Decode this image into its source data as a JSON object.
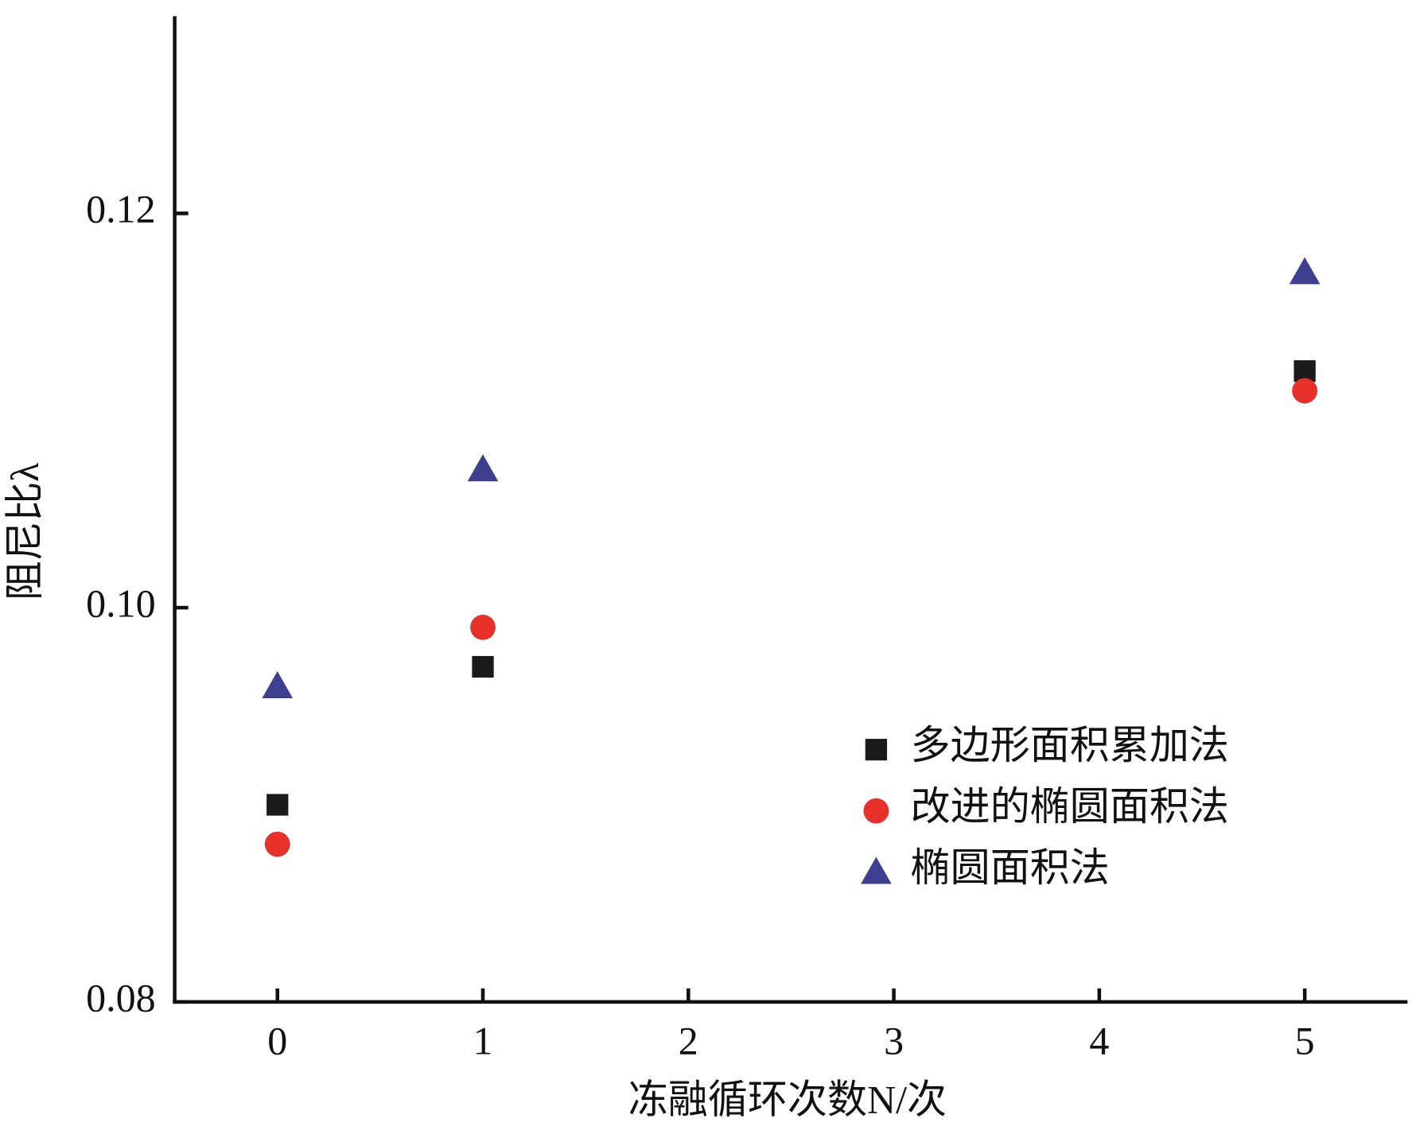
{
  "chart_data": {
    "type": "scatter",
    "x_label": "冻融循环次数N/次",
    "y_label": "阻尼比λ",
    "x": [
      0,
      1,
      5
    ],
    "series": [
      {
        "name": "多边形面积累加法",
        "color": "#1a1a1a",
        "marker": "square",
        "values": [
          0.09,
          0.097,
          0.112
        ]
      },
      {
        "name": "改进的椭圆面积法",
        "color": "#e8302a",
        "marker": "circle",
        "values": [
          0.088,
          0.099,
          0.111
        ]
      },
      {
        "name": "椭圆面积法",
        "color": "#3f3f8f",
        "marker": "triangle",
        "values": [
          0.096,
          0.107,
          0.117
        ]
      }
    ],
    "xlim": [
      -0.5,
      5.5
    ],
    "xticks": [
      0,
      1,
      2,
      3,
      4,
      5
    ],
    "ylim": [
      0.08,
      0.13
    ],
    "yticks": [
      0.08,
      {
        "value": 0.1,
        "label": "0.10"
      },
      0.12
    ],
    "grid": false,
    "legend": "lower right"
  }
}
